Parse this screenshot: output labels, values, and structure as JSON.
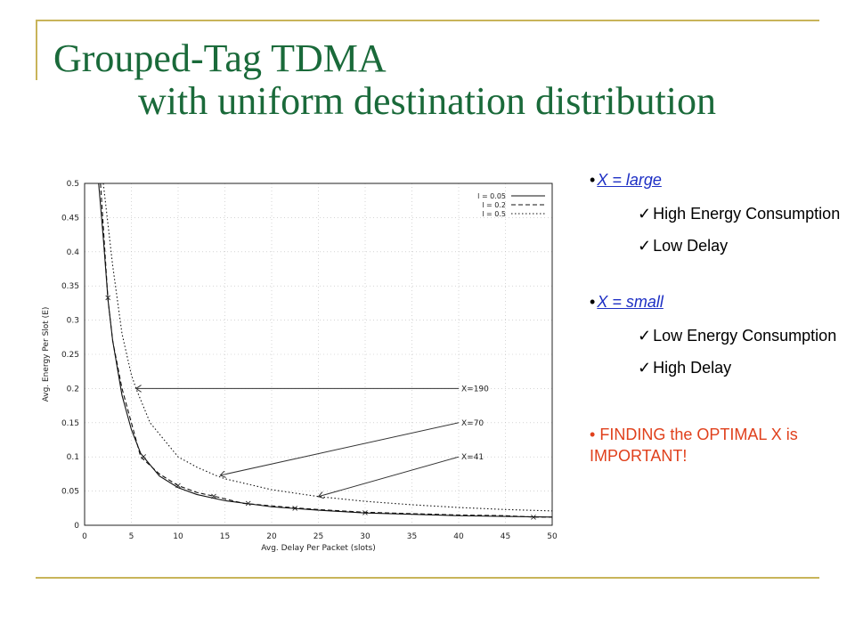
{
  "title": {
    "line1": "Grouped-Tag TDMA",
    "line2": "with uniform destination distribution"
  },
  "colors": {
    "title": "#1a6a3a",
    "rule": "#c8b45a",
    "link": "#1d2fc4",
    "highlight": "#e0401c"
  },
  "bullets": {
    "group1": {
      "head": "X = large",
      "items": [
        "High Energy Consumption",
        "Low Delay"
      ]
    },
    "group2": {
      "head": "X = small",
      "items": [
        "Low Energy Consumption",
        "High Delay"
      ]
    },
    "finding": "FINDING the OPTIMAL X is IMPORTANT!",
    "bullet_glyph": "•",
    "check_glyph": "✓"
  },
  "chart_data": {
    "type": "line",
    "xlabel": "Avg. Delay Per Packet (slots)",
    "ylabel": "Avg. Energy Per Slot (E)",
    "xlim": [
      0,
      50
    ],
    "ylim": [
      0,
      0.5
    ],
    "xticks": [
      "0",
      "5",
      "10",
      "15",
      "20",
      "25",
      "30",
      "35",
      "40",
      "45",
      "50"
    ],
    "yticks": [
      "0",
      "0.05",
      "0.1",
      "0.15",
      "0.2",
      "0.25",
      "0.3",
      "0.35",
      "0.4",
      "0.45",
      "0.5"
    ],
    "grid": true,
    "legend_position": "top-right",
    "series": [
      {
        "name": "l = 0.05",
        "style": "solid",
        "x": [
          1.5,
          2,
          2.5,
          3,
          4,
          5,
          6,
          8,
          10,
          12,
          15,
          20,
          25,
          30,
          35,
          40,
          45,
          50
        ],
        "y": [
          0.5,
          0.42,
          0.33,
          0.27,
          0.19,
          0.14,
          0.105,
          0.072,
          0.055,
          0.045,
          0.036,
          0.027,
          0.022,
          0.018,
          0.016,
          0.014,
          0.013,
          0.012
        ]
      },
      {
        "name": "l = 0.2",
        "style": "dashed",
        "x": [
          1.7,
          2.5,
          3,
          4,
          5,
          6,
          8,
          10,
          12,
          14,
          17,
          22,
          25,
          30,
          35,
          40,
          45,
          48,
          50
        ],
        "y": [
          0.5,
          0.33,
          0.27,
          0.2,
          0.15,
          0.1,
          0.075,
          0.058,
          0.048,
          0.042,
          0.032,
          0.026,
          0.023,
          0.019,
          0.017,
          0.015,
          0.014,
          0.012,
          0.012
        ]
      },
      {
        "name": "l = 0.5",
        "style": "dotted",
        "x": [
          2,
          3,
          4,
          5,
          5.5,
          7,
          10,
          12,
          14,
          15,
          20,
          25,
          30,
          35,
          40,
          45,
          50
        ],
        "y": [
          0.5,
          0.38,
          0.28,
          0.22,
          0.2,
          0.15,
          0.1,
          0.085,
          0.073,
          0.068,
          0.052,
          0.042,
          0.035,
          0.03,
          0.026,
          0.023,
          0.021
        ]
      }
    ],
    "markers": [
      {
        "x": 2.5,
        "y": 0.333
      },
      {
        "x": 6.3,
        "y": 0.1
      },
      {
        "x": 10,
        "y": 0.058
      },
      {
        "x": 13.8,
        "y": 0.042
      },
      {
        "x": 17.5,
        "y": 0.032
      },
      {
        "x": 22.5,
        "y": 0.025
      },
      {
        "x": 30,
        "y": 0.018
      },
      {
        "x": 48,
        "y": 0.012
      }
    ],
    "annotations": [
      {
        "text": "X=190",
        "label_x": 40,
        "label_y": 0.2,
        "arrow_to_x": 5.5,
        "arrow_to_y": 0.2
      },
      {
        "text": "X=70",
        "label_x": 40,
        "label_y": 0.15,
        "arrow_to_x": 14.5,
        "arrow_to_y": 0.073
      },
      {
        "text": "X=41",
        "label_x": 40,
        "label_y": 0.1,
        "arrow_to_x": 25,
        "arrow_to_y": 0.042
      }
    ]
  }
}
